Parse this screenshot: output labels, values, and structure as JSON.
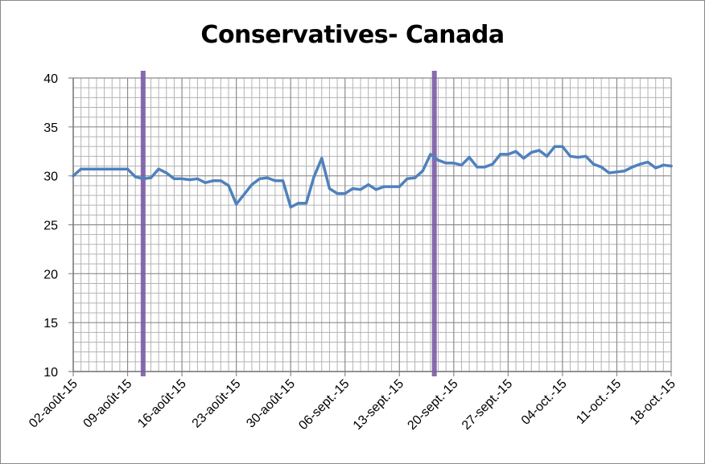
{
  "chart_data": {
    "type": "line",
    "title": "Conservatives- Canada",
    "xlabel": "",
    "ylabel": "",
    "ylim": [
      10,
      40
    ],
    "yticks": [
      "10",
      "15",
      "20",
      "25",
      "30",
      "35",
      "40"
    ],
    "xticks": [
      "02-août-15",
      "09-août-15",
      "16-août-15",
      "23-août-15",
      "30-août-15",
      "06-sept.-15",
      "13-sept.-15",
      "20-sept.-15",
      "27-sept.-15",
      "04-oct.-15",
      "11-oct.-15",
      "18-oct.-15"
    ],
    "x_day_range": [
      0,
      77
    ],
    "grid": true,
    "vertical_markers_day": [
      9,
      46.5
    ],
    "colors": {
      "line": "#4f81bd",
      "marker": "#7b5aa6",
      "grid": "#b4b4b4"
    },
    "series": [
      {
        "x": [
          0,
          1,
          2,
          3,
          4,
          5,
          6,
          7,
          8,
          9,
          10,
          11,
          12,
          13,
          14,
          15,
          16,
          17,
          18,
          19,
          20,
          21,
          22,
          23,
          24,
          25,
          26,
          27,
          28,
          29,
          30,
          31,
          32,
          33,
          34,
          35,
          36,
          37,
          38,
          39,
          40,
          41,
          42,
          43,
          44,
          45,
          46,
          47,
          48,
          49,
          50,
          51,
          52,
          53,
          54,
          55,
          56,
          57,
          58,
          59,
          60,
          61,
          62,
          63,
          64,
          65,
          66,
          67,
          68,
          69,
          70,
          71,
          72,
          73,
          74,
          75,
          76,
          77
        ],
        "values": [
          30.0,
          30.7,
          30.7,
          30.7,
          30.7,
          30.7,
          30.7,
          30.7,
          29.9,
          29.7,
          29.8,
          30.7,
          30.3,
          29.7,
          29.7,
          29.6,
          29.7,
          29.3,
          29.5,
          29.5,
          29.0,
          27.1,
          28.1,
          29.1,
          29.7,
          29.8,
          29.5,
          29.5,
          26.8,
          27.2,
          27.2,
          29.9,
          31.8,
          28.7,
          28.2,
          28.2,
          28.7,
          28.6,
          29.1,
          28.6,
          28.9,
          28.9,
          28.9,
          29.7,
          29.8,
          30.5,
          32.2,
          31.6,
          31.3,
          31.3,
          31.1,
          31.9,
          30.9,
          30.9,
          31.2,
          32.2,
          32.2,
          32.5,
          31.8,
          32.4,
          32.6,
          32.0,
          33.0,
          33.0,
          32.0,
          31.9,
          32.0,
          31.2,
          30.9,
          30.3,
          30.4,
          30.5,
          30.9,
          31.2,
          31.4,
          30.8,
          31.1,
          31.0
        ]
      }
    ]
  }
}
